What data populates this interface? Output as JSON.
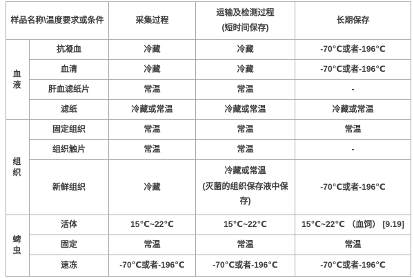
{
  "table": {
    "header": {
      "col_sample": "样品名称\\温度要求或条件",
      "col_collect": "采集过程",
      "col_transport_line1": "运输及检测过程",
      "col_transport_line2": "(短时间保存)",
      "col_longterm": "长期保存"
    },
    "groups": [
      {
        "label": "血 液"
      },
      {
        "label": "组 织"
      },
      {
        "label": "蜱虫"
      }
    ],
    "rows": [
      {
        "name": "抗凝血",
        "collect": "冷藏",
        "transport": "冷藏",
        "longterm": "-70℃或者-196℃"
      },
      {
        "name": "血清",
        "collect": "冷藏",
        "transport": "冷藏",
        "longterm": "-70℃或者-196℃"
      },
      {
        "name": "肝血滤纸片",
        "collect": "常温",
        "transport": "常温",
        "longterm": "-"
      },
      {
        "name": "滤纸",
        "collect": "冷藏或常温",
        "transport": "冷藏或常温",
        "longterm": "冷藏或常温"
      },
      {
        "name": "固定组织",
        "collect": "常温",
        "transport": "常温",
        "longterm": "常温"
      },
      {
        "name": "组织触片",
        "collect": "常温",
        "transport": "常温",
        "longterm": "-"
      },
      {
        "name": "新鲜组织",
        "collect": "冷藏",
        "transport": "冷藏或常温",
        "transport_note": "(灭菌的组织保存液中保存)",
        "longterm": "-70℃或者-196℃"
      },
      {
        "name": "活体",
        "collect": "15℃~22℃",
        "transport": "15℃~22℃",
        "longterm": "15℃~22℃ （血饲） [9.19]"
      },
      {
        "name": "固定",
        "collect": "常温",
        "transport": "常温",
        "longterm": "常温"
      },
      {
        "name": "速冻",
        "collect": "-70℃或者-196℃",
        "transport": "-70℃或者-196℃",
        "longterm": "-70℃或者-196℃"
      }
    ],
    "colors": {
      "border": "#a8a8a8",
      "text": "#3d3d3d",
      "background": "#ffffff"
    }
  }
}
